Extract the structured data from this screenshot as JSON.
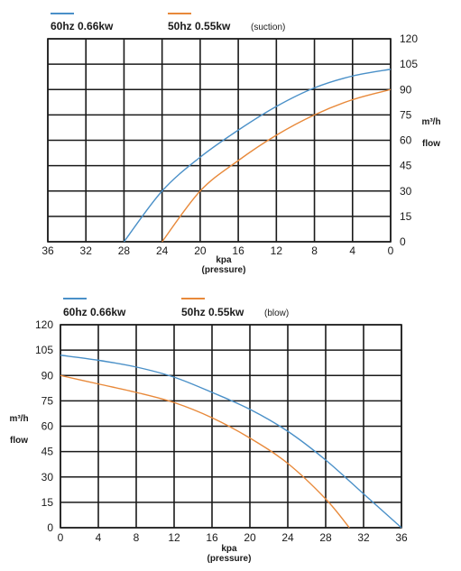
{
  "chart_data": [
    {
      "type": "line",
      "title": "",
      "mode_label": "(suction)",
      "xlabel": "kpa",
      "xlabel2": "(pressure)",
      "ylabel": "m³/h",
      "ylabel2": "flow",
      "x_reversed": true,
      "xlim": [
        0,
        36
      ],
      "ylim": [
        0,
        120
      ],
      "x_ticks": [
        36,
        32,
        28,
        24,
        20,
        16,
        12,
        8,
        4,
        0
      ],
      "y_ticks": [
        0,
        15,
        30,
        45,
        60,
        75,
        90,
        105,
        120
      ],
      "grid": true,
      "legend_position": "top",
      "series": [
        {
          "name": "60hz 0.66kw",
          "color": "#4a90c8",
          "x": [
            28,
            24,
            20,
            16,
            12,
            8,
            4,
            0
          ],
          "y": [
            0,
            30,
            50,
            66,
            80,
            91,
            98,
            102
          ]
        },
        {
          "name": "50hz  0.55kw",
          "color": "#e8893a",
          "x": [
            24,
            20,
            16,
            12,
            8,
            4,
            0
          ],
          "y": [
            0,
            30,
            48,
            63,
            75,
            84,
            90
          ]
        }
      ]
    },
    {
      "type": "line",
      "title": "",
      "mode_label": "(blow)",
      "xlabel": "kpa",
      "xlabel2": "(pressure)",
      "ylabel": "m³/h",
      "ylabel2": "flow",
      "x_reversed": false,
      "xlim": [
        0,
        36
      ],
      "ylim": [
        0,
        120
      ],
      "x_ticks": [
        0,
        4,
        8,
        12,
        16,
        20,
        24,
        28,
        32,
        36
      ],
      "y_ticks": [
        0,
        15,
        30,
        45,
        60,
        75,
        90,
        105,
        120
      ],
      "grid": true,
      "legend_position": "top",
      "series": [
        {
          "name": "60hz 0.66kw",
          "color": "#4a90c8",
          "x": [
            0,
            4,
            8,
            12,
            16,
            20,
            24,
            28,
            32,
            36
          ],
          "y": [
            102,
            99,
            95,
            89,
            80,
            70,
            57,
            40,
            20,
            0
          ]
        },
        {
          "name": "50hz  0.55kw",
          "color": "#e8893a",
          "x": [
            0,
            4,
            8,
            12,
            16,
            20,
            24,
            28,
            30.5
          ],
          "y": [
            90,
            85,
            80,
            74,
            65,
            53,
            38,
            17,
            0
          ]
        }
      ]
    }
  ]
}
